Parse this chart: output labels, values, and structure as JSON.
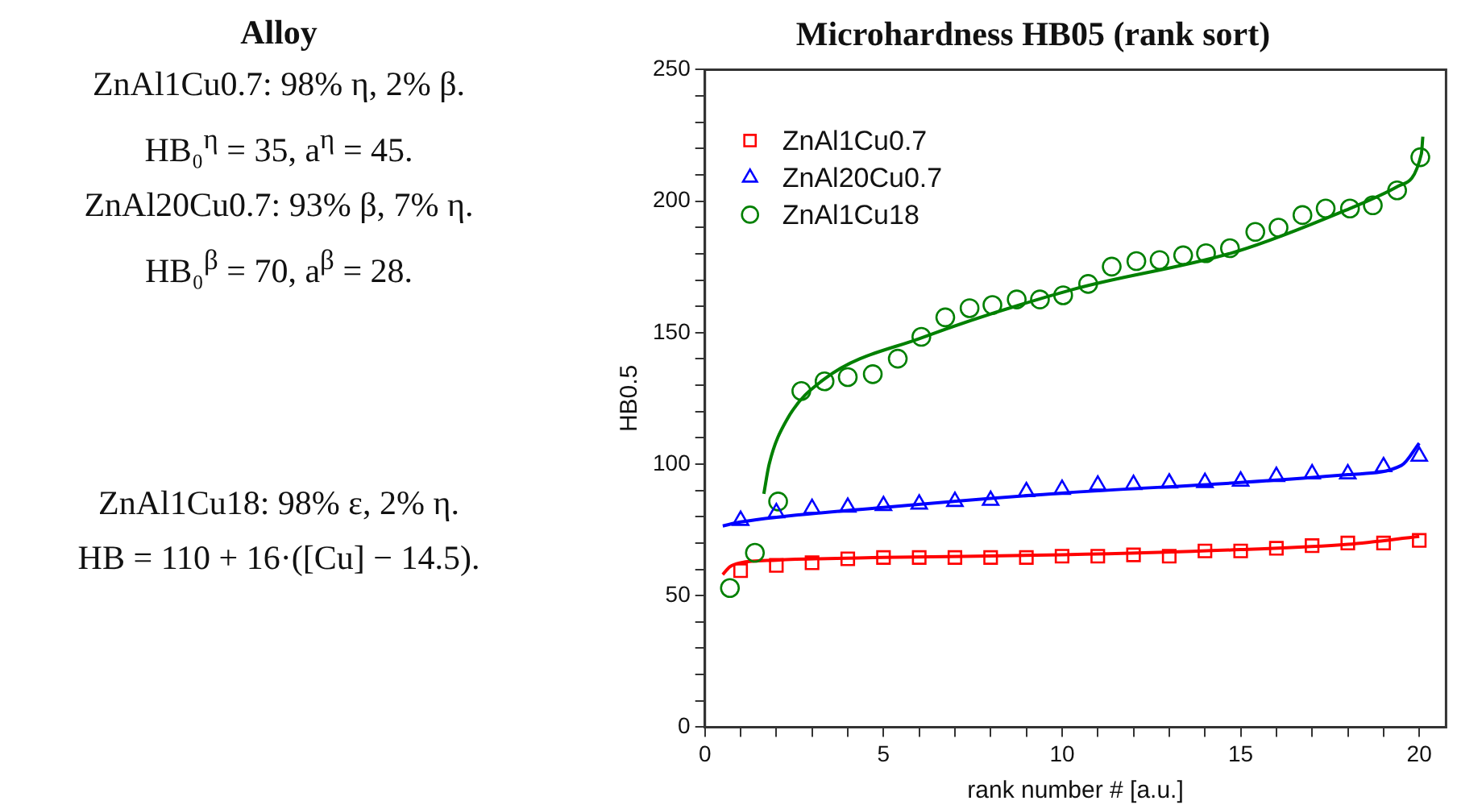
{
  "chart_data": [
    {
      "type": "other",
      "title": "Alloy",
      "annotations": [
        "ZnAl1Cu0.7: 98% η, 2% β.",
        "HB₀$^{η}$ = 35, a$^{η}$ = 45.",
        "ZnAl20Cu0.7: 93% β, 7% η.",
        "HB₀$^{β}$ = 70, a$^{β}$ = 28.",
        "ZnAl1Cu18: 98% ε, 2% η.",
        "HB = 110 + 16·([Cu] − 14.5)."
      ]
    },
    {
      "type": "scatter",
      "title": "Microhardness HB05 (rank sort)",
      "xlabel": "rank number # [a.u.]",
      "ylabel": "HB0.5",
      "xlim": [
        0,
        20.75
      ],
      "ylim": [
        0,
        250
      ],
      "xticks": [
        0,
        {
          "value": 1,
          "label": null
        },
        {
          "value": 2,
          "label": null
        },
        {
          "value": 3,
          "label": null
        },
        {
          "value": 4,
          "label": null
        },
        5,
        {
          "value": 6,
          "label": null
        },
        {
          "value": 7,
          "label": null
        },
        {
          "value": 8,
          "label": null
        },
        {
          "value": 9,
          "label": null
        },
        10,
        {
          "value": 11,
          "label": null
        },
        {
          "value": 12,
          "label": null
        },
        {
          "value": 13,
          "label": null
        },
        {
          "value": 14,
          "label": null
        },
        15,
        {
          "value": 16,
          "label": null
        },
        {
          "value": 17,
          "label": null
        },
        {
          "value": 18,
          "label": null
        },
        {
          "value": 19,
          "label": null
        },
        20
      ],
      "yticks": [
        0,
        {
          "value": 10,
          "label": null
        },
        {
          "value": 20,
          "label": null
        },
        {
          "value": 30,
          "label": null
        },
        {
          "value": 40,
          "label": null
        },
        50,
        {
          "value": 60,
          "label": null
        },
        {
          "value": 70,
          "label": null
        },
        {
          "value": 80,
          "label": null
        },
        {
          "value": 90,
          "label": null
        },
        100,
        {
          "value": 110,
          "label": null
        },
        {
          "value": 120,
          "label": null
        },
        {
          "value": 130,
          "label": null
        },
        {
          "value": 140,
          "label": null
        },
        150,
        {
          "value": 160,
          "label": null
        },
        {
          "value": 170,
          "label": null
        },
        {
          "value": 180,
          "label": null
        },
        {
          "value": 190,
          "label": null
        },
        200,
        {
          "value": 210,
          "label": null
        },
        {
          "value": 220,
          "label": null
        },
        {
          "value": 230,
          "label": null
        },
        {
          "value": 240,
          "label": null
        },
        250
      ],
      "grid": false,
      "legend": "top left",
      "series": [
        {
          "name": "ZnAl1Cu0.7",
          "type": "scatter",
          "marker": "square",
          "color": "#ff0000",
          "x": [
            1,
            2,
            3,
            4,
            5,
            6,
            7,
            8,
            9,
            10,
            11,
            12,
            13,
            14,
            15,
            16,
            17,
            18,
            19,
            20
          ],
          "values": [
            59.5,
            61.5,
            62.5,
            64,
            64.5,
            64.5,
            64.5,
            64.5,
            64.5,
            65,
            65,
            65.5,
            65,
            67,
            67,
            68,
            69,
            70,
            70,
            71
          ]
        },
        {
          "name": "ZnAl20Cu0.7",
          "type": "scatter",
          "marker": "triangle",
          "color": "#0000ff",
          "x": [
            1,
            2,
            3,
            4,
            5,
            6,
            7,
            8,
            9,
            10,
            11,
            12,
            13,
            14,
            15,
            16,
            17,
            18,
            19,
            20
          ],
          "values": [
            78.6,
            81.5,
            83.1,
            83.6,
            84.2,
            84.8,
            85.8,
            86.2,
            89.5,
            90.4,
            92,
            92.2,
            92.8,
            93,
            93.5,
            95.3,
            96.3,
            96.3,
            99,
            103
          ]
        },
        {
          "name": "ZnAl1Cu18",
          "type": "scatter",
          "marker": "circle",
          "color": "#008000",
          "x": [
            0.7,
            1.4,
            2.05,
            2.7,
            3.35,
            4.0,
            4.7,
            5.4,
            6.06,
            6.73,
            7.41,
            8.05,
            8.73,
            9.38,
            10.03,
            10.73,
            11.39,
            12.08,
            12.73,
            13.39,
            14.03,
            14.7,
            15.41,
            16.06,
            16.73,
            17.38,
            18.06,
            18.7,
            19.38,
            20.03
          ],
          "values": [
            52.9,
            66.3,
            85.8,
            127.8,
            131.5,
            133.1,
            134.2,
            140.1,
            148.4,
            155.8,
            159.3,
            160.5,
            162.6,
            162.6,
            164.2,
            168.5,
            175.1,
            177.2,
            177.6,
            179.4,
            180.2,
            182.1,
            188.3,
            189.9,
            194.7,
            197.2,
            197.2,
            198.4,
            204.1,
            216.7
          ]
        },
        {
          "type": "line",
          "marker": "none",
          "color": "#ff0000",
          "x": [
            0.5,
            0.7,
            1,
            2,
            5,
            10,
            15,
            18,
            20
          ],
          "values": [
            58,
            61,
            62.5,
            63.5,
            64.5,
            65.5,
            67.5,
            69.5,
            72.5
          ]
        },
        {
          "type": "line",
          "marker": "none",
          "color": "#0000ff",
          "x": [
            0.5,
            1,
            5,
            10,
            15,
            18,
            19.5,
            20
          ],
          "values": [
            76.5,
            78,
            83.5,
            89,
            93,
            96,
            99.5,
            108
          ]
        },
        {
          "type": "line",
          "marker": "none",
          "color": "#008000",
          "x": [
            1.65,
            1.8,
            2.3,
            3.36,
            6.06,
            10.33,
            14.88,
            17.9,
            19.4,
            20.06,
            20.1
          ],
          "values": [
            88.7,
            100,
            117,
            132.5,
            148,
            166.5,
            180.8,
            196.3,
            205.6,
            218,
            224.5
          ]
        }
      ]
    }
  ]
}
